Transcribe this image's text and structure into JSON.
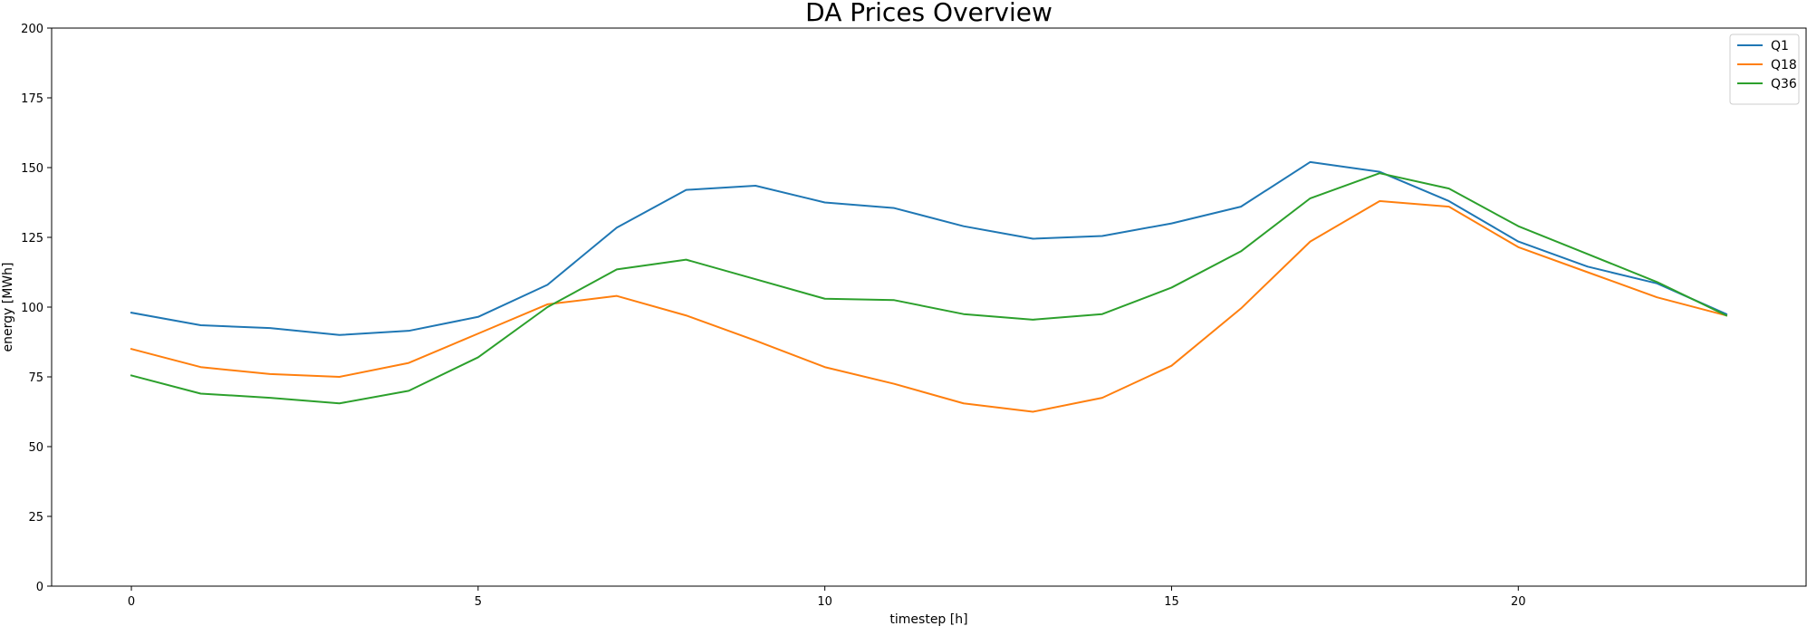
{
  "chart_data": {
    "type": "line",
    "title": "DA Prices Overview",
    "xlabel": "timestep [h]",
    "ylabel": "energy [MWh]",
    "xlim": [
      -1.15,
      24.15
    ],
    "ylim": [
      0,
      200
    ],
    "xticks": [
      0,
      5,
      10,
      15,
      20
    ],
    "yticks": [
      0,
      25,
      50,
      75,
      100,
      125,
      150,
      175,
      200
    ],
    "grid": false,
    "legend_position": "top-right",
    "x": [
      0,
      1,
      2,
      3,
      4,
      5,
      6,
      7,
      8,
      9,
      10,
      11,
      12,
      13,
      14,
      15,
      16,
      17,
      18,
      19,
      20,
      21,
      22,
      23
    ],
    "series": [
      {
        "name": "Q1",
        "color": "#1f77b4",
        "values": [
          98,
          93.5,
          92.5,
          90,
          91.5,
          96.5,
          108,
          128.5,
          142,
          143.5,
          137.5,
          135.5,
          129,
          124.5,
          125.5,
          130,
          136,
          152,
          148.5,
          138,
          123.5,
          114.5,
          108.5,
          97.5
        ]
      },
      {
        "name": "Q18",
        "color": "#ff7f0e",
        "values": [
          85,
          78.5,
          76,
          75,
          80,
          90.5,
          101,
          104,
          97,
          88,
          78.5,
          72.5,
          65.5,
          62.5,
          67.5,
          79,
          99.5,
          123.5,
          138,
          136,
          121.5,
          112.5,
          103.5,
          97
        ]
      },
      {
        "name": "Q36",
        "color": "#2ca02c",
        "values": [
          75.5,
          69,
          67.5,
          65.5,
          70,
          82,
          100,
          113.5,
          117,
          110,
          103,
          102.5,
          97.5,
          95.5,
          97.5,
          107,
          120,
          139,
          148,
          142.5,
          129,
          119,
          109,
          97
        ]
      }
    ]
  }
}
